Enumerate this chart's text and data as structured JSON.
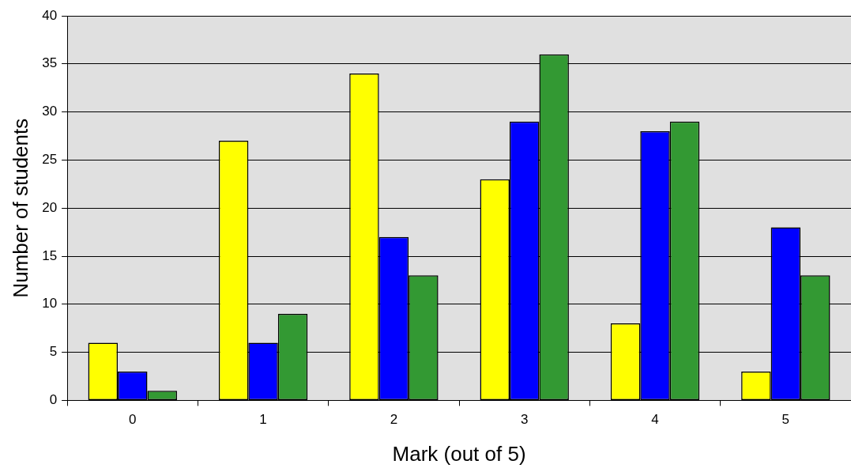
{
  "chart_data": {
    "type": "bar",
    "xlabel": "Mark (out of 5)",
    "ylabel": "Number of students",
    "categories": [
      "0",
      "1",
      "2",
      "3",
      "4",
      "5"
    ],
    "series": [
      {
        "color": "#ffff00",
        "values": [
          6,
          27,
          34,
          23,
          8,
          3
        ]
      },
      {
        "color": "#0000ff",
        "values": [
          3,
          6,
          17,
          29,
          28,
          18
        ]
      },
      {
        "color": "#339933",
        "values": [
          1,
          9,
          13,
          36,
          29,
          13
        ]
      }
    ],
    "ylim": [
      0,
      40
    ],
    "yticks": [
      0,
      5,
      10,
      15,
      20,
      25,
      30,
      35,
      40
    ],
    "grid": "y",
    "legend": false
  }
}
